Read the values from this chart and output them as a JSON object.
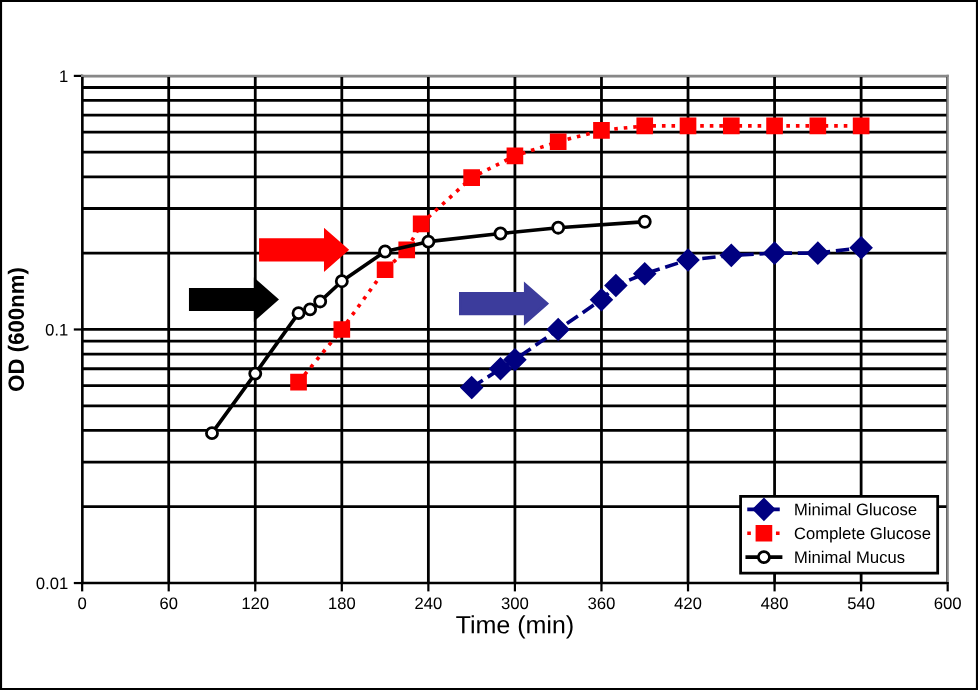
{
  "chart_data": {
    "type": "line",
    "xlabel": "Time (min)",
    "ylabel": "OD (600nm)",
    "log": "y",
    "xlim": [
      0,
      600
    ],
    "xticks": [
      0,
      60,
      120,
      180,
      240,
      300,
      360,
      420,
      480,
      540,
      600
    ],
    "ylim": [
      0.01,
      1
    ],
    "yticks": [
      0.01,
      0.1,
      1
    ],
    "grid": true,
    "legend": "bottom right",
    "series": [
      {
        "name": "Minimal Glucose",
        "color": "#000080",
        "marker": "diamond",
        "line_style": "dashed",
        "x": [
          270,
          290,
          300,
          330,
          360,
          370,
          390,
          420,
          450,
          480,
          510,
          540
        ],
        "values": [
          0.059,
          0.07,
          0.076,
          0.1,
          0.131,
          0.149,
          0.166,
          0.188,
          0.196,
          0.2,
          0.2,
          0.21
        ]
      },
      {
        "name": "Complete Glucose",
        "color": "#ff0000",
        "marker": "square",
        "line_style": "dotted",
        "x": [
          150,
          180,
          210,
          225,
          235,
          270,
          300,
          330,
          360,
          390,
          420,
          450,
          480,
          510,
          540
        ],
        "values": [
          0.062,
          0.1,
          0.172,
          0.206,
          0.261,
          0.397,
          0.484,
          0.55,
          0.61,
          0.635,
          0.635,
          0.635,
          0.635,
          0.635,
          0.635
        ]
      },
      {
        "name": "Minimal Mucus",
        "color": "#000000",
        "marker": "circle",
        "line_style": "solid",
        "x": [
          90,
          120,
          150,
          158,
          165,
          180,
          210,
          240,
          290,
          330,
          390
        ],
        "values": [
          0.039,
          0.067,
          0.116,
          0.12,
          0.129,
          0.155,
          0.203,
          0.222,
          0.239,
          0.252,
          0.266
        ]
      }
    ]
  }
}
